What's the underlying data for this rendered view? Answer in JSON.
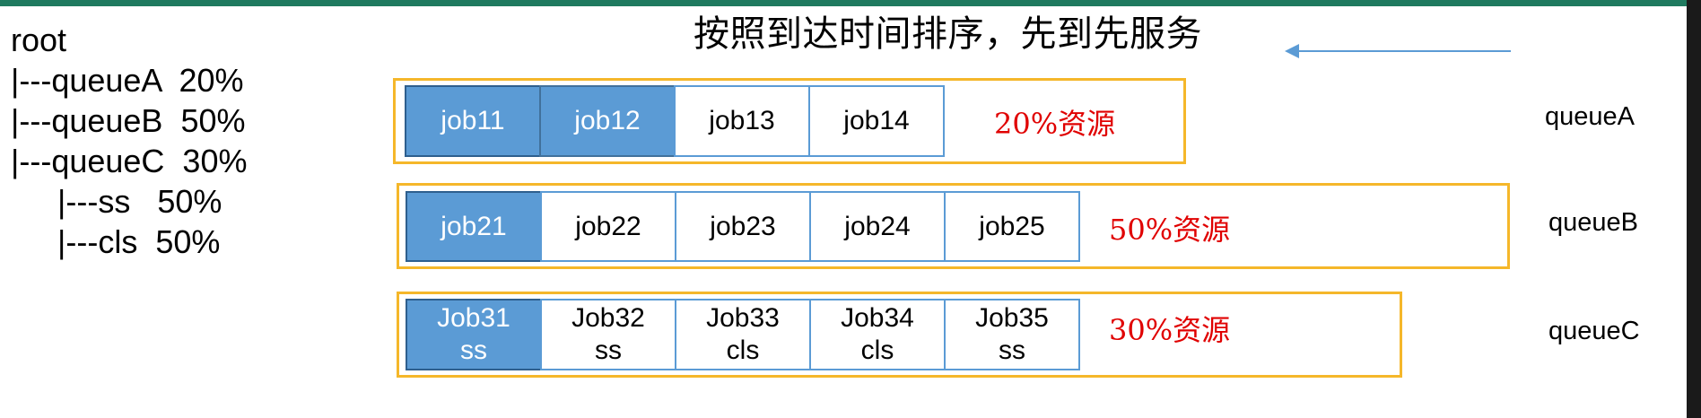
{
  "title": "按照到达时间排序，先到先服务",
  "tree": [
    "root",
    "|---queueA  20%",
    "|---queueB  50%",
    "|---queueC  30%",
    "|---ss   50%",
    "|---cls  50%"
  ],
  "arrow_icon": "arrow-left-icon",
  "colors": {
    "queue_border": "#f5b72a",
    "job_border": "#5b9bd5",
    "job_running_fill": "#5b9bd5",
    "resource_text": "#e00000",
    "arrow": "#5b9bd5"
  },
  "queues": [
    {
      "label": "queueA",
      "resource": "20%资源",
      "jobs": [
        {
          "line1": "job11",
          "line2": "",
          "running": true
        },
        {
          "line1": "job12",
          "line2": "",
          "running": true
        },
        {
          "line1": "job13",
          "line2": "",
          "running": false
        },
        {
          "line1": "job14",
          "line2": "",
          "running": false
        }
      ]
    },
    {
      "label": "queueB",
      "resource": "50%资源",
      "jobs": [
        {
          "line1": "job21",
          "line2": "",
          "running": true
        },
        {
          "line1": "job22",
          "line2": "",
          "running": false
        },
        {
          "line1": "job23",
          "line2": "",
          "running": false
        },
        {
          "line1": "job24",
          "line2": "",
          "running": false
        },
        {
          "line1": "job25",
          "line2": "",
          "running": false
        }
      ]
    },
    {
      "label": "queueC",
      "resource": "30%资源",
      "jobs": [
        {
          "line1": "Job31",
          "line2": "ss",
          "running": true
        },
        {
          "line1": "Job32",
          "line2": "ss",
          "running": false
        },
        {
          "line1": "Job33",
          "line2": "cls",
          "running": false
        },
        {
          "line1": "Job34",
          "line2": "cls",
          "running": false
        },
        {
          "line1": "Job35",
          "line2": "ss",
          "running": false
        }
      ]
    }
  ]
}
